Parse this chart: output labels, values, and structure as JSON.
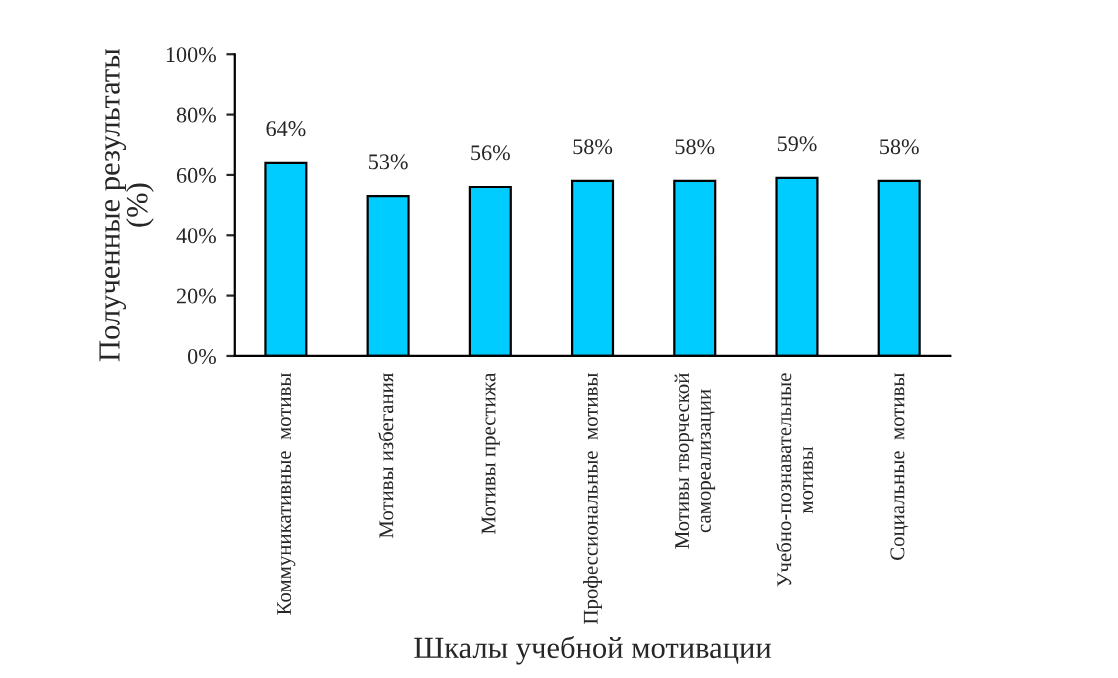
{
  "chart_data": {
    "type": "bar",
    "xlabel": "Шкалы учебной мотивации",
    "ylabel": "Полученные результаты\n(%)",
    "categories": [
      "Коммуникативные  мотивы",
      "Мотивы избегания",
      "Мотивы престижа",
      "Профессиональные  мотивы",
      "Мотивы творческой\nсамореализации",
      "Учебно-познавательные\nмотивы",
      "Социальные  мотивы"
    ],
    "values": [
      64,
      53,
      56,
      58,
      58,
      59,
      58
    ],
    "value_labels": [
      "64%",
      "53%",
      "56%",
      "58%",
      "58%",
      "59%",
      "58%"
    ],
    "color": "#00ccff",
    "ylim": [
      0,
      100
    ],
    "yticks": [
      {
        "value": 0,
        "label": "0%"
      },
      {
        "value": 20,
        "label": "20%"
      },
      {
        "value": 40,
        "label": "40%"
      },
      {
        "value": 60,
        "label": "60%"
      },
      {
        "value": 80,
        "label": "80%"
      },
      {
        "value": 100,
        "label": "100%"
      }
    ],
    "grid": false,
    "legend": false
  }
}
